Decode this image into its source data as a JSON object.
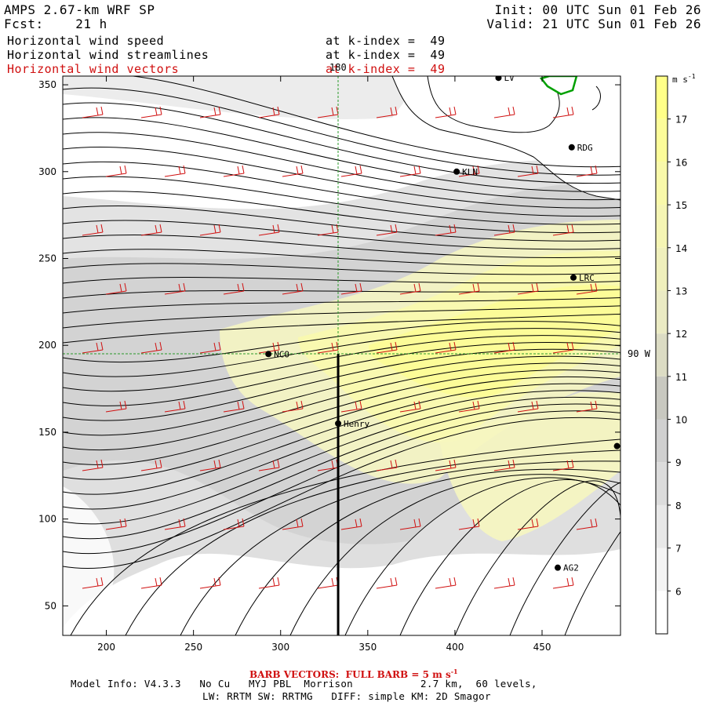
{
  "header": {
    "model": "AMPS 2.67-km WRF SP",
    "fcst_label": "Fcst:",
    "fcst_value": "21 h",
    "init": "Init: 00 UTC Sun 01 Feb 26",
    "valid": "Valid: 21 UTC Sun 01 Feb 26",
    "fields": [
      {
        "name": "Horizontal wind speed",
        "level": "at k-index =  49"
      },
      {
        "name": "Horizontal wind streamlines",
        "level": "at k-index =  49"
      },
      {
        "name": "Horizontal wind vectors",
        "level": "at k-index =  49"
      }
    ]
  },
  "chart_data": {
    "type": "heatmap",
    "title": "Horizontal wind speed / streamlines / vectors at k-index = 49",
    "x_ticks": [
      "200",
      "250",
      "300",
      "350",
      "400",
      "450"
    ],
    "y_ticks": [
      "50",
      "100",
      "150",
      "200",
      "250",
      "300",
      "350"
    ],
    "xlim": [
      175,
      495
    ],
    "ylim": [
      33,
      355
    ],
    "grid_labels": {
      "meridian": "180",
      "parallel": "90 W"
    },
    "colorbar": {
      "unit": "m s",
      "unit_exp": "-1",
      "levels": [
        "6",
        "7",
        "8",
        "9",
        "10",
        "11",
        "12",
        "13",
        "14",
        "15",
        "16",
        "17"
      ],
      "colors": [
        "#ffffff",
        "#f4f4f4",
        "#e8e8e8",
        "#dcdcdc",
        "#d0d0d0",
        "#c8c8c0",
        "#dcdcc4",
        "#ebebc4",
        "#f0f0bc",
        "#f5f5b4",
        "#f9f9aa",
        "#fcfc9a",
        "#ffff88"
      ]
    },
    "stations": [
      {
        "name": "LV",
        "x": 425,
        "y": 354
      },
      {
        "name": "RDG",
        "x": 467,
        "y": 314
      },
      {
        "name": "KLN",
        "x": 401,
        "y": 300
      },
      {
        "name": "LRC",
        "x": 468,
        "y": 239
      },
      {
        "name": "NCO",
        "x": 293,
        "y": 195
      },
      {
        "name": "Henry",
        "x": 333,
        "y": 155
      },
      {
        "name": "",
        "x": 493,
        "y": 142
      },
      {
        "name": "AG2",
        "x": 459,
        "y": 72
      }
    ],
    "cross_section": {
      "x": 333,
      "y_start": 33,
      "y_end": 195
    }
  },
  "footer": {
    "barb_text": "BARB VECTORS:  FULL BARB = 5 m s",
    "barb_exp": "-1",
    "line1": "Model Info: V4.3.3   No Cu   MYJ PBL  Morrison           2.7 km,  60 levels,",
    "line2": "LW: RRTM SW: RRTMG   DIFF: simple KM: 2D Smagor"
  }
}
